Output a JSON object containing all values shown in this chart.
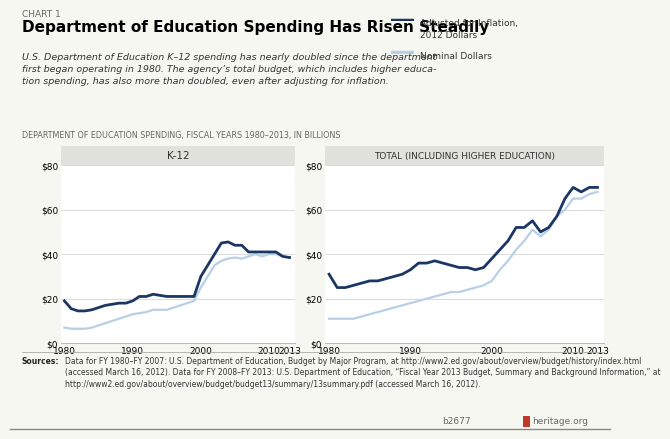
{
  "title": "Department of Education Spending Has Risen Steadily",
  "chart_label": "CHART 1",
  "subtitle": "U.S. Department of Education K–12 spending has nearly doubled since the department\nfirst began operating in 1980. The agency’s total budget, which includes higher educa-\ntion spending, has also more than doubled, even after adjusting for inflation.",
  "data_label": "DEPARTMENT OF EDUCATION SPENDING, FISCAL YEARS 1980–2013, IN BILLIONS",
  "legend_dark": "Adjusted for Inflation,\n2012 Dollars",
  "legend_light": "Nominal Dollars",
  "panel1_title": "K-12",
  "panel2_title": "TOTAL (INCLUDING HIGHER EDUCATION)",
  "sources_text": "Data for FY 1980–FY 2007: U.S. Department of Education, Budget by Major Program, at http://www2.ed.gov/about/overview/budget/history/index.html\n(accessed March 16, 2012). Data for FY 2008–FY 2013: U.S. Department of Education, “Fiscal Year 2013 Budget, Summary and Background Information,” at\nhttp://www2.ed.gov/about/overview/budget/budget13/summary/13summary.pdf (accessed March 16, 2012).",
  "sources_bold": "Sources:",
  "footer_id": "b2677",
  "footer_brand": "heritage.org",
  "dark_blue": "#1c3664",
  "light_blue": "#b8cfe8",
  "bg_color": "#f7f7f2",
  "panel_bg": "#ffffff",
  "title_box_color": "#e2e2dc",
  "years": [
    1980,
    1981,
    1982,
    1983,
    1984,
    1985,
    1986,
    1987,
    1988,
    1989,
    1990,
    1991,
    1992,
    1993,
    1994,
    1995,
    1996,
    1997,
    1998,
    1999,
    2000,
    2001,
    2002,
    2003,
    2004,
    2005,
    2006,
    2007,
    2008,
    2009,
    2010,
    2011,
    2012,
    2013
  ],
  "k12_inflation": [
    19,
    15.5,
    14.5,
    14.5,
    15,
    16,
    17,
    17.5,
    18,
    18,
    19,
    21,
    21,
    22,
    21.5,
    21,
    21,
    21,
    21,
    21,
    30,
    35,
    40,
    45,
    45.5,
    44,
    44,
    41,
    41,
    41,
    41,
    41,
    39,
    38.5
  ],
  "k12_nominal": [
    7,
    6.5,
    6.5,
    6.5,
    7,
    8,
    9,
    10,
    11,
    12,
    13,
    13.5,
    14,
    15,
    15,
    15,
    16,
    17,
    18,
    19,
    25,
    30,
    35,
    37,
    38,
    38.5,
    38,
    39,
    40,
    39,
    40,
    40,
    39,
    38.5
  ],
  "total_inflation": [
    31,
    25,
    25,
    26,
    27,
    28,
    28,
    29,
    30,
    31,
    33,
    36,
    36,
    37,
    36,
    35,
    34,
    34,
    33,
    34,
    38,
    42,
    46,
    52,
    52,
    55,
    50,
    52,
    57,
    65,
    70,
    68,
    70,
    70
  ],
  "total_nominal": [
    11,
    11,
    11,
    11,
    12,
    13,
    14,
    15,
    16,
    17,
    18,
    19,
    20,
    21,
    22,
    23,
    23,
    24,
    25,
    26,
    28,
    33,
    37,
    42,
    46,
    51,
    48,
    51,
    57,
    60,
    65,
    65,
    67,
    68
  ],
  "ylim": [
    0,
    80
  ],
  "yticks": [
    0,
    20,
    40,
    60,
    80
  ],
  "xticks": [
    1980,
    1990,
    2000,
    2010,
    2013
  ]
}
